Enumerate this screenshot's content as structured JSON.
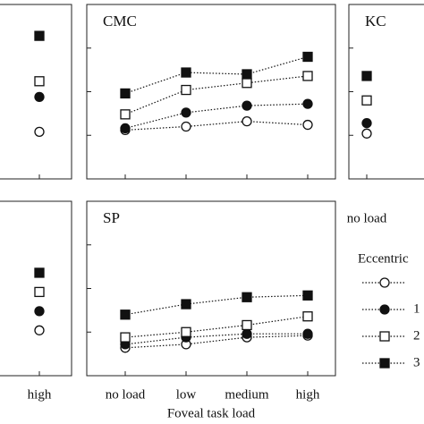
{
  "chart_data": [
    {
      "type": "line",
      "categories": [
        "high"
      ],
      "ylim": [
        0,
        10
      ],
      "series": [
        {
          "marker": "open-circle",
          "color": "#111",
          "values": [
            2.7
          ]
        },
        {
          "marker": "filled-circle",
          "color": "#111",
          "values": [
            4.7
          ]
        },
        {
          "marker": "open-square",
          "color": "#111",
          "values": [
            5.6
          ]
        },
        {
          "marker": "filled-square",
          "color": "#111",
          "values": [
            8.2
          ]
        }
      ]
    },
    {
      "type": "line",
      "title": "CMC",
      "categories": [
        "no load",
        "low",
        "medium",
        "high"
      ],
      "ylim": [
        0,
        10
      ],
      "series": [
        {
          "marker": "open-circle",
          "color": "#111",
          "values": [
            2.8,
            3.0,
            3.3,
            3.1
          ]
        },
        {
          "marker": "filled-circle",
          "color": "#111",
          "values": [
            2.9,
            3.8,
            4.2,
            4.3
          ]
        },
        {
          "marker": "open-square",
          "color": "#111",
          "values": [
            3.7,
            5.1,
            5.5,
            5.9
          ]
        },
        {
          "marker": "filled-square",
          "color": "#111",
          "values": [
            4.9,
            6.1,
            6.0,
            7.0
          ]
        }
      ]
    },
    {
      "type": "line",
      "title": "KC",
      "categories": [
        "no load"
      ],
      "ylim": [
        0,
        10
      ],
      "series": [
        {
          "marker": "open-circle",
          "color": "#111",
          "values": [
            2.6
          ]
        },
        {
          "marker": "filled-circle",
          "color": "#111",
          "values": [
            3.2
          ]
        },
        {
          "marker": "open-square",
          "color": "#111",
          "values": [
            4.5
          ]
        },
        {
          "marker": "filled-square",
          "color": "#111",
          "values": [
            5.9
          ]
        }
      ]
    },
    {
      "type": "line",
      "categories": [
        "high"
      ],
      "ylim": [
        0,
        10
      ],
      "series": [
        {
          "marker": "open-circle",
          "color": "#111",
          "values": [
            2.6
          ]
        },
        {
          "marker": "filled-circle",
          "color": "#111",
          "values": [
            3.7
          ]
        },
        {
          "marker": "open-square",
          "color": "#111",
          "values": [
            4.8
          ]
        },
        {
          "marker": "filled-square",
          "color": "#111",
          "values": [
            5.9
          ]
        }
      ]
    },
    {
      "type": "line",
      "title": "SP",
      "xlabel": "Foveal task load",
      "legend_title": "Eccentric",
      "categories": [
        "no load",
        "low",
        "medium",
        "high"
      ],
      "ylim": [
        0,
        10
      ],
      "series": [
        {
          "marker": "open-circle",
          "color": "#111",
          "values": [
            1.6,
            1.8,
            2.2,
            2.3
          ]
        },
        {
          "name": "1",
          "marker": "filled-circle",
          "color": "#111",
          "values": [
            1.8,
            2.2,
            2.4,
            2.4
          ]
        },
        {
          "name": "2",
          "marker": "open-square",
          "color": "#111",
          "values": [
            2.2,
            2.5,
            2.9,
            3.4
          ]
        },
        {
          "name": "3",
          "marker": "filled-square",
          "color": "#111",
          "values": [
            3.5,
            4.1,
            4.5,
            4.6
          ]
        }
      ]
    }
  ]
}
